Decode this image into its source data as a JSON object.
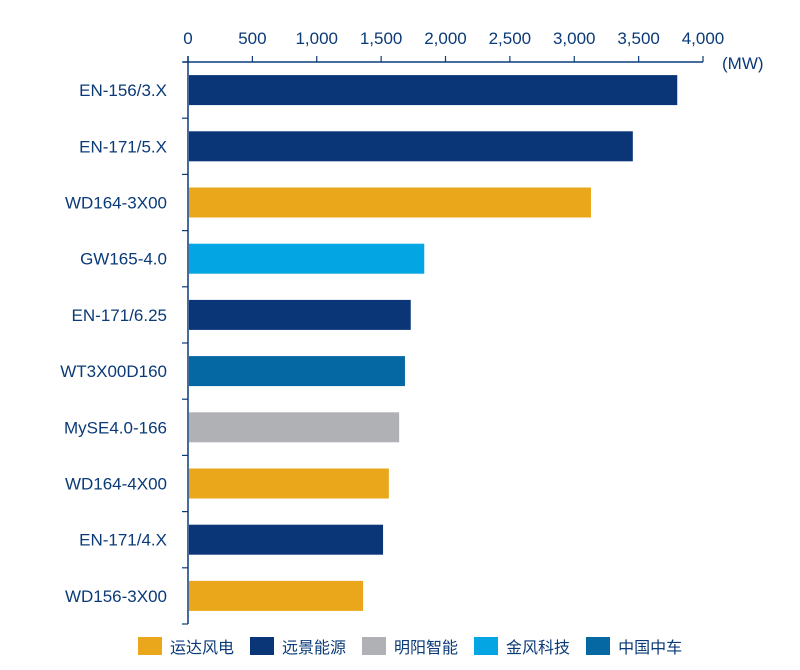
{
  "chart_data": {
    "type": "bar",
    "orientation": "horizontal",
    "title": "",
    "xlabel": "(MW)",
    "ylabel": "",
    "xlim": [
      0,
      4000
    ],
    "xticks": [
      0,
      500,
      1000,
      1500,
      2000,
      2500,
      3000,
      3500,
      4000
    ],
    "xtick_labels": [
      "0",
      "500",
      "1,000",
      "1,500",
      "2,000",
      "2,500",
      "3,000",
      "3,500",
      "4,000"
    ],
    "x_axis_position": "top",
    "grid": false,
    "legend_position": "bottom",
    "categories": [
      "EN-156/3.X",
      "EN-171/5.X",
      "WD164-3X00",
      "GW165-4.0",
      "EN-171/6.25",
      "WT3X00D160",
      "MySE4.0-166",
      "WD164-4X00",
      "EN-171/4.X",
      "WD156-3X00"
    ],
    "values": [
      3800,
      3455,
      3130,
      1835,
      1730,
      1685,
      1640,
      1560,
      1515,
      1360
    ],
    "bar_series": [
      "远景能源",
      "远景能源",
      "运达风电",
      "金风科技",
      "远景能源",
      "中国中车",
      "明阳智能",
      "运达风电",
      "远景能源",
      "运达风电"
    ],
    "legend": [
      {
        "name": "运达风电",
        "color": "#eaa71b"
      },
      {
        "name": "远景能源",
        "color": "#0a3677"
      },
      {
        "name": "明阳智能",
        "color": "#b0b1b4"
      },
      {
        "name": "金风科技",
        "color": "#03a5e2"
      },
      {
        "name": "中国中车",
        "color": "#0568a3"
      }
    ]
  },
  "colors": {
    "axis": "#0a3a78",
    "text": "#0a3a78"
  }
}
